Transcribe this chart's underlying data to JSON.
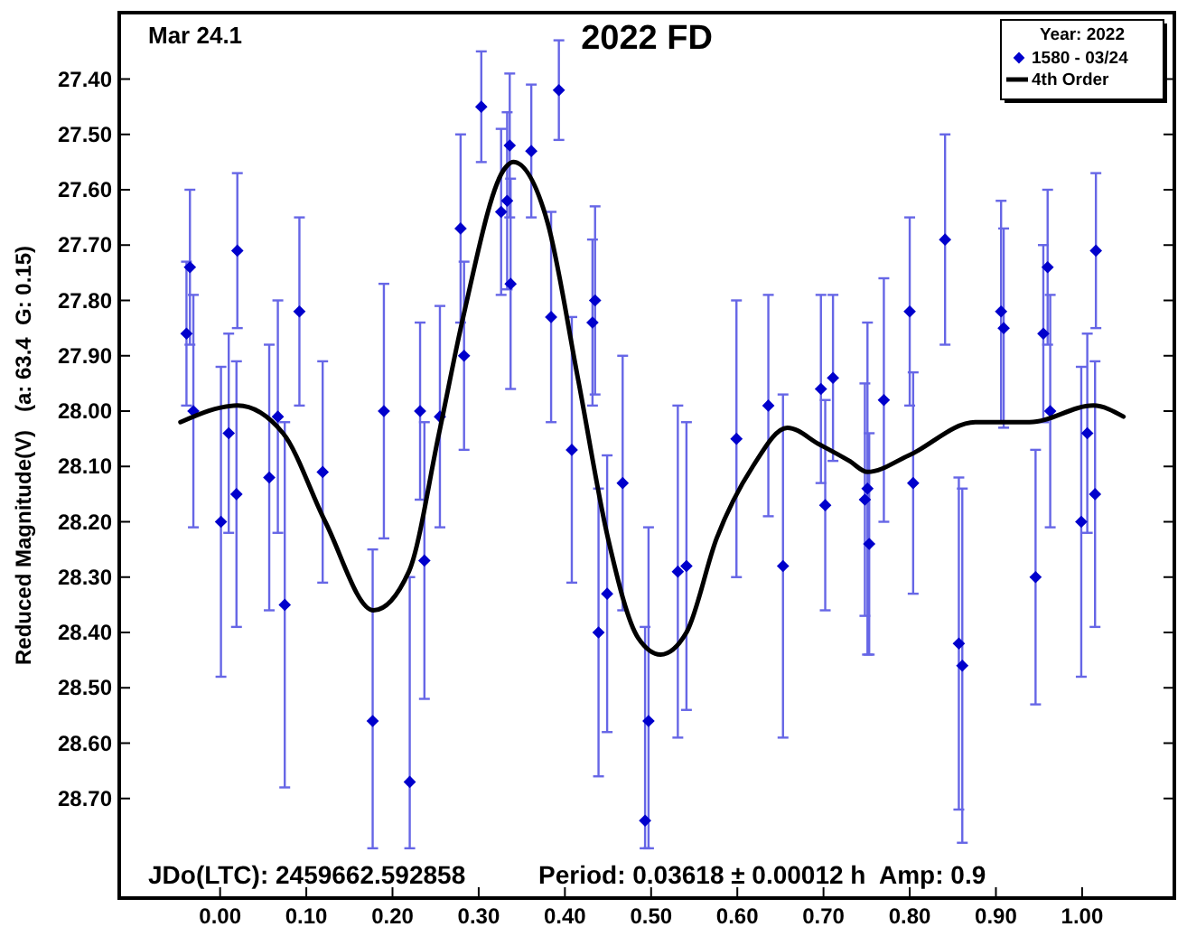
{
  "chart_data": {
    "type": "scatter",
    "title": "2022 FD",
    "ylabel": "Reduced Magnitude(V)   (a: 63.4  G: 0.15)",
    "legend_title": "Year: 2022",
    "annotations": [
      "Mar 24.1",
      "JDo(LTC): 2459662.592858",
      "Period: 0.03618 ± 0.00012 h  Amp: 0.9"
    ],
    "xlim": [
      -0.117,
      1.107
    ],
    "ylim": [
      28.88,
      27.28
    ],
    "xticks": [
      {
        "value": 0,
        "label": "0.00"
      },
      {
        "value": 0.1,
        "label": "0.10"
      },
      {
        "value": 0.2,
        "label": "0.20"
      },
      {
        "value": 0.3,
        "label": "0.30"
      },
      {
        "value": 0.4,
        "label": "0.40"
      },
      {
        "value": 0.5,
        "label": "0.50"
      },
      {
        "value": 0.6,
        "label": "0.60"
      },
      {
        "value": 0.7,
        "label": "0.70"
      },
      {
        "value": 0.8,
        "label": "0.80"
      },
      {
        "value": 0.9,
        "label": "0.90"
      },
      {
        "value": 1,
        "label": "1.00"
      }
    ],
    "yticks": [
      {
        "value": 27.4,
        "label": "27.40"
      },
      {
        "value": 27.5,
        "label": "27.50"
      },
      {
        "value": 27.6,
        "label": "27.60"
      },
      {
        "value": 27.7,
        "label": "27.70"
      },
      {
        "value": 27.8,
        "label": "27.80"
      },
      {
        "value": 27.9,
        "label": "27.90"
      },
      {
        "value": 28,
        "label": "28.00"
      },
      {
        "value": 28.1,
        "label": "28.10"
      },
      {
        "value": 28.2,
        "label": "28.20"
      },
      {
        "value": 28.3,
        "label": "28.30"
      },
      {
        "value": 28.4,
        "label": "28.40"
      },
      {
        "value": 28.5,
        "label": "28.50"
      },
      {
        "value": 28.6,
        "label": "28.60"
      },
      {
        "value": 28.7,
        "label": "28.70"
      }
    ],
    "grid": false,
    "legend": "top right",
    "series": [
      {
        "name": "1580 - 03/24",
        "marker": "diamond",
        "color": "#0000cc",
        "x": [
          -0.039,
          -0.035,
          -0.031,
          0.001,
          0.01,
          0.019,
          0.02,
          0.057,
          0.067,
          0.075,
          0.092,
          0.119,
          0.177,
          0.19,
          0.22,
          0.232,
          0.237,
          0.255,
          0.279,
          0.283,
          0.303,
          0.326,
          0.333,
          0.336,
          0.337,
          0.361,
          0.393,
          0.384,
          0.408,
          0.435,
          0.432,
          0.439,
          0.449,
          0.467,
          0.497,
          0.493,
          0.531,
          0.541,
          0.599,
          0.636,
          0.653,
          0.697,
          0.702,
          0.711,
          0.751,
          0.748,
          0.753,
          0.77,
          0.8,
          0.804,
          0.841,
          0.857,
          0.861,
          0.906,
          0.909,
          0.946,
          0.955,
          0.96,
          0.963,
          0.999,
          1.006,
          1.015,
          1.016
        ],
        "values": [
          27.86,
          27.74,
          28.0,
          28.2,
          28.04,
          28.15,
          27.71,
          28.12,
          28.01,
          28.35,
          27.82,
          28.11,
          28.56,
          28.0,
          28.67,
          28.0,
          28.27,
          28.01,
          27.67,
          27.9,
          27.45,
          27.64,
          27.62,
          27.52,
          27.77,
          27.53,
          27.42,
          27.83,
          28.07,
          27.8,
          27.84,
          28.4,
          28.33,
          28.13,
          28.56,
          28.74,
          28.29,
          28.28,
          28.05,
          27.99,
          28.28,
          27.96,
          28.17,
          27.94,
          28.14,
          28.16,
          28.24,
          27.98,
          27.82,
          28.13,
          27.69,
          28.42,
          28.46,
          27.82,
          27.85,
          28.3,
          27.86,
          27.74,
          28.0,
          28.2,
          28.04,
          28.15,
          27.71
        ],
        "errors": [
          0.13,
          0.14,
          0.21,
          0.28,
          0.18,
          0.24,
          0.14,
          0.24,
          0.21,
          0.33,
          0.17,
          0.2,
          [
            28.25,
            28.79
          ],
          0.23,
          [
            28.3,
            28.79
          ],
          0.16,
          0.25,
          0.2,
          0.17,
          0.17,
          0.1,
          0.15,
          0.16,
          0.13,
          0.19,
          0.12,
          0.09,
          0.19,
          0.24,
          0.17,
          0.15,
          0.26,
          0.25,
          0.23,
          [
            28.21,
            28.79
          ],
          [
            28.39,
            28.79
          ],
          0.3,
          0.26,
          0.25,
          0.2,
          0.31,
          0.17,
          0.19,
          0.15,
          0.3,
          0.21,
          0.2,
          0.22,
          0.17,
          0.2,
          0.19,
          0.3,
          0.32,
          0.2,
          0.18,
          0.23,
          0.16,
          0.14,
          0.21,
          0.28,
          0.18,
          0.24,
          0.14
        ]
      },
      {
        "name": "4th Order",
        "type": "line",
        "marker": "none",
        "line_style": "solid",
        "color": "#000000",
        "x": [
          -0.046,
          0.02,
          0.073,
          0.122,
          0.178,
          0.219,
          0.254,
          0.282,
          0.331,
          0.34,
          0.38,
          0.415,
          0.45,
          0.485,
          0.511,
          0.541,
          0.576,
          0.618,
          0.658,
          0.695,
          0.73,
          0.751,
          0.799,
          0.876,
          0.939,
          1.013,
          1.048
        ],
        "values": [
          28.02,
          27.99,
          28.04,
          28.2,
          28.36,
          28.29,
          28.04,
          27.83,
          27.56,
          27.55,
          27.66,
          27.94,
          28.23,
          28.41,
          28.44,
          28.4,
          28.23,
          28.1,
          28.03,
          28.06,
          28.09,
          28.11,
          28.08,
          28.02,
          28.02,
          27.99,
          28.01
        ]
      }
    ]
  }
}
